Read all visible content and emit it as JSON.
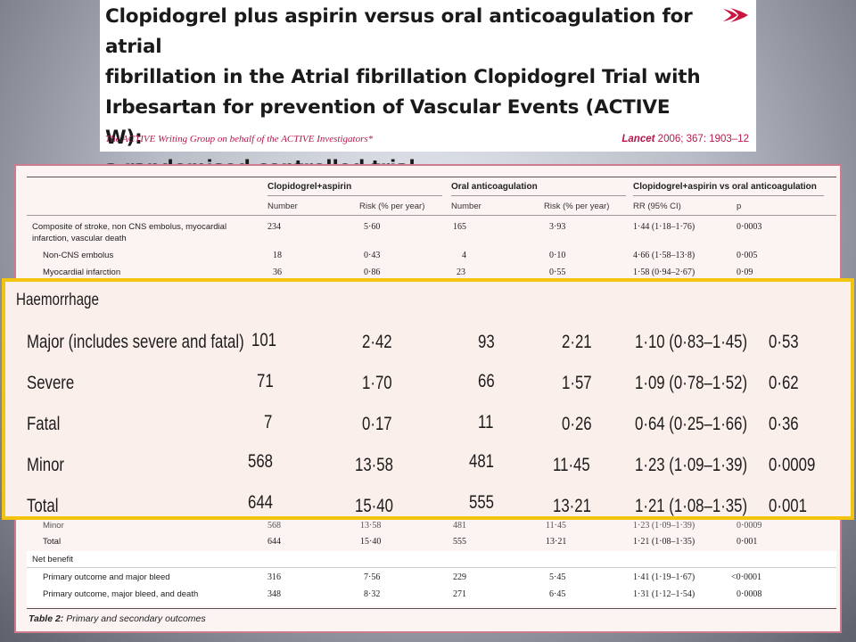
{
  "paper": {
    "title_lines": [
      "Clopidogrel plus aspirin versus oral anticoagulation for atrial",
      "fibrillation in the Atrial fibrillation Clopidogrel Trial with",
      "Irbesartan for prevention of Vascular Events (ACTIVE W):",
      "a randomised controlled trial"
    ],
    "authors": "The ACTIVE Writing Group on behalf of the ACTIVE Investigators*",
    "journal": "Lancet",
    "citation_rest": "2006; 367: 1903–12",
    "logo_icon": "lancet-arrow-icon",
    "accent_color": "#b5174a"
  },
  "table": {
    "group_headers": [
      "Clopidogrel+aspirin",
      "Oral anticoagulation",
      "Clopidogrel+aspirin vs oral anticoagulation"
    ],
    "sub_headers": [
      "Number",
      "Risk (% per year)",
      "Number",
      "Risk (% per year)",
      "RR (95% CI)",
      "p"
    ],
    "rows": [
      {
        "label": [
          "Composite of stroke, non CNS embolus, myocardial",
          "infarction, vascular death"
        ],
        "values": [
          "234",
          "5·60",
          "165",
          "3·93",
          "1·44 (1·18–1·76)",
          "0·0003"
        ]
      },
      {
        "label": [
          "Non-CNS embolus"
        ],
        "values": [
          "18",
          "0·43",
          "4",
          "0·10",
          "4·66 (1·58–13·8)",
          "0·005"
        ]
      },
      {
        "label": [
          "Myocardial infarction"
        ],
        "values": [
          "36",
          "0·86",
          "23",
          "0·55",
          "1·58 (0·94–2·67)",
          "0·09"
        ]
      }
    ],
    "partial_rows": [
      {
        "label": [
          "Minor"
        ],
        "values": [
          "568",
          "13·58",
          "481",
          "11·45",
          "1·23 (1·09–1·39)",
          "0·0009"
        ]
      },
      {
        "label": [
          "Total"
        ],
        "values": [
          "644",
          "15·40",
          "555",
          "13·21",
          "1·21 (1·08–1·35)",
          "0·001"
        ]
      }
    ],
    "net_benefit": {
      "label": "Net benefit",
      "rows": [
        {
          "label": [
            "Primary outcome and major bleed"
          ],
          "values": [
            "316",
            "7·56",
            "229",
            "5·45",
            "1·41 (1·19–1·67)",
            "<0·0001"
          ]
        },
        {
          "label": [
            "Primary outcome, major bleed, and death"
          ],
          "values": [
            "348",
            "8·32",
            "271",
            "6·45",
            "1·31 (1·12–1·54)",
            "0·0008"
          ]
        }
      ]
    },
    "caption_number": "Table 2:",
    "caption_text": "Primary and secondary outcomes"
  },
  "zoom": {
    "heading": "Haemorrhage",
    "highlight_color": "#f2c40f",
    "rows": [
      {
        "label": "Major (includes severe and fatal)",
        "values": [
          "101",
          "2·42",
          "93",
          "2·21",
          "1·10 (0·83–1·45)",
          "0·53"
        ]
      },
      {
        "label": "Severe",
        "values": [
          "71",
          "1·70",
          "66",
          "1·57",
          "1·09 (0·78–1·52)",
          "0·62"
        ]
      },
      {
        "label": "Fatal",
        "values": [
          "7",
          "0·17",
          "11",
          "0·26",
          "0·64 (0·25–1·66)",
          "0·36"
        ]
      },
      {
        "label": "Minor",
        "values": [
          "568",
          "13·58",
          "481",
          "11·45",
          "1·23 (1·09–1·39)",
          "0·0009"
        ]
      },
      {
        "label": "Total",
        "values": [
          "644",
          "15·40",
          "555",
          "13·21",
          "1·21 (1·08–1·35)",
          "0·001"
        ]
      }
    ]
  }
}
